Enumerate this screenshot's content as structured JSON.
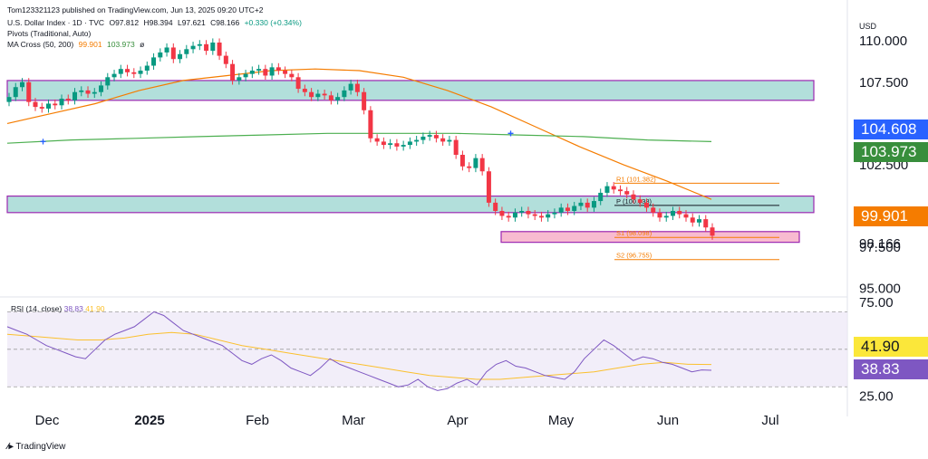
{
  "header": {
    "publisher": "Tom123321123 published on TradingView.com, Jun 13, 2025 09:20 UTC+2",
    "symbol": "U.S. Dollar Index · 1D · TVC",
    "ohlc": {
      "o": "O97.812",
      "h": "H98.394",
      "l": "L97.621",
      "c": "C98.166",
      "chg": "+0.330 (+0.34%)"
    },
    "pivots": "Pivots (Traditional, Auto)",
    "ma_label": "MA Cross (50, 200)",
    "ma_fast": "99.901",
    "ma_slow": "103.973",
    "ma_tail": "ø"
  },
  "currency": "USD",
  "badges": {
    "blue": {
      "text": "104.608",
      "color": "#2962ff"
    },
    "green": {
      "text": "103.973",
      "color": "#388e3c"
    },
    "orange": {
      "text": "99.901",
      "color": "#f57c00"
    },
    "price": {
      "text": "98.166"
    },
    "rsi_yellow": {
      "text": "41.90",
      "color": "#fbe73a"
    },
    "rsi_purple": {
      "text": "38.83",
      "color": "#7e57c2"
    }
  },
  "rsi_legend": {
    "name": "RSI (14, close)",
    "v1": "38.83",
    "v2": "41.90"
  },
  "footer": "TradingView",
  "colors": {
    "up": "#089981",
    "down": "#f23645",
    "ma50": "#f57c00",
    "ma200": "#4caf50",
    "rsi": "#7e57c2",
    "rsi_ma": "#fbc02d",
    "zone": "#b2dfdb",
    "zone_border": "#9c27b0",
    "pink": "#f8bbd0"
  },
  "chart_data": [
    {
      "type": "candlestick",
      "title": "U.S. Dollar Index · 1D · TVC",
      "y_ticks": [
        110.0,
        107.5,
        102.5,
        97.5,
        95.0
      ],
      "y_tick_labels": [
        "110.000",
        "107.500",
        "102.500",
        "97.500",
        "95.000"
      ],
      "ylim": [
        94.6,
        111.6
      ],
      "x_months": [
        "Dec",
        "2025",
        "Feb",
        "Mar",
        "Apr",
        "May",
        "Jun",
        "Jul"
      ],
      "candles_close": [
        106.6,
        107.2,
        107.5,
        106.3,
        106.0,
        105.9,
        106.2,
        106.1,
        106.5,
        106.4,
        106.9,
        107.0,
        106.8,
        106.9,
        107.3,
        107.8,
        108.0,
        108.3,
        108.1,
        108.0,
        108.2,
        108.5,
        109.0,
        109.3,
        109.6,
        108.9,
        109.2,
        109.5,
        109.7,
        109.8,
        109.4,
        109.9,
        109.1,
        108.6,
        107.6,
        107.8,
        108.0,
        108.2,
        108.3,
        107.9,
        108.4,
        108.2,
        108.0,
        107.8,
        107.1,
        106.9,
        106.6,
        106.8,
        106.7,
        106.4,
        106.6,
        107.0,
        107.4,
        106.9,
        105.8,
        104.1,
        103.9,
        103.7,
        103.8,
        103.6,
        103.7,
        103.9,
        104.0,
        104.2,
        104.3,
        104.1,
        103.9,
        104.0,
        103.1,
        102.4,
        102.3,
        102.9,
        102.1,
        100.2,
        99.7,
        99.4,
        99.3,
        99.6,
        99.7,
        99.5,
        99.4,
        99.3,
        99.5,
        99.6,
        99.9,
        99.7,
        100.0,
        100.2,
        99.9,
        100.3,
        100.8,
        101.2,
        101.0,
        100.9,
        100.7,
        100.4,
        100.2,
        99.9,
        99.6,
        99.3,
        99.4,
        99.7,
        99.5,
        99.3,
        99.0,
        99.2,
        98.7,
        98.2
      ],
      "ma50": [
        105.0,
        105.6,
        106.2,
        107.0,
        107.6,
        107.9,
        108.2,
        108.3,
        108.2,
        107.8,
        107.0,
        106.0,
        104.8,
        103.6,
        102.5,
        101.5,
        100.4
      ],
      "ma200": [
        103.8,
        104.0,
        104.1,
        104.2,
        104.3,
        104.4,
        104.4,
        104.4,
        104.3,
        104.2,
        104.0,
        103.9
      ],
      "zones": [
        {
          "from": 106.4,
          "to": 107.6
        },
        {
          "from": 99.6,
          "to": 100.6
        }
      ],
      "pink_zone": {
        "from": 97.8,
        "to": 98.45
      },
      "pivot_levels": [
        {
          "label": "R1 (101.382)",
          "value": 101.382
        },
        {
          "label": "P (100.038)",
          "value": 100.038
        },
        {
          "label": "S1 (98.098)",
          "value": 98.098
        },
        {
          "label": "S2 (96.755)",
          "value": 96.755
        }
      ]
    },
    {
      "type": "line",
      "title": "RSI (14, close)",
      "y_ticks": [
        75.0,
        25.0
      ],
      "y_tick_labels": [
        "75.00",
        "25.00"
      ],
      "ylim": [
        20,
        75
      ],
      "band": [
        30,
        70
      ],
      "rsi": [
        62,
        60,
        58,
        55,
        52,
        50,
        48,
        46,
        45,
        50,
        55,
        58,
        60,
        62,
        66,
        70,
        68,
        64,
        60,
        58,
        56,
        54,
        52,
        48,
        44,
        42,
        45,
        47,
        44,
        40,
        38,
        36,
        40,
        45,
        42,
        40,
        38,
        36,
        34,
        32,
        30,
        31,
        34,
        30,
        28,
        29,
        32,
        34,
        31,
        38,
        42,
        44,
        41,
        40,
        38,
        36,
        35,
        34,
        38,
        45,
        50,
        55,
        52,
        48,
        44,
        46,
        45,
        43,
        42,
        40,
        38,
        39,
        38.83
      ],
      "rsi_ma": [
        58,
        57,
        56,
        55,
        55,
        56,
        58,
        59,
        58,
        55,
        52,
        50,
        48,
        46,
        44,
        42,
        40,
        38,
        36,
        35,
        34,
        34,
        35,
        36,
        37,
        38,
        40,
        42,
        43,
        42,
        41.9
      ]
    }
  ]
}
